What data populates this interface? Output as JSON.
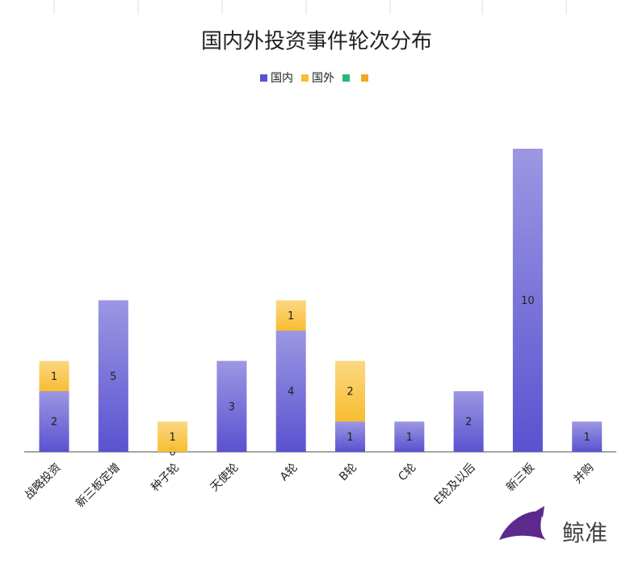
{
  "chart_data": {
    "type": "stacked_bar",
    "title": "国内外投资事件轮次分布",
    "categories": [
      "战略投资",
      "新三板定增",
      "种子轮",
      "天使轮",
      "A轮",
      "B轮",
      "C轮",
      "E轮及以后",
      "新三板",
      "并购"
    ],
    "series": [
      {
        "name": "国内",
        "color": "#5a52d0",
        "values": [
          2,
          5,
          0,
          3,
          4,
          1,
          1,
          2,
          10,
          1
        ]
      },
      {
        "name": "国外",
        "color": "#f8bd30",
        "values": [
          1,
          null,
          1,
          null,
          1,
          2,
          null,
          null,
          null,
          null
        ]
      },
      {
        "color": "#2ab673",
        "values": [
          null,
          null,
          null,
          null,
          null,
          null,
          null,
          null,
          null,
          null
        ]
      },
      {
        "color": "#f5a623",
        "values": [
          null,
          null,
          null,
          null,
          null,
          null,
          null,
          null,
          null,
          null
        ]
      }
    ],
    "ylim": [
      0,
      10
    ],
    "watermark": "鲸准"
  }
}
